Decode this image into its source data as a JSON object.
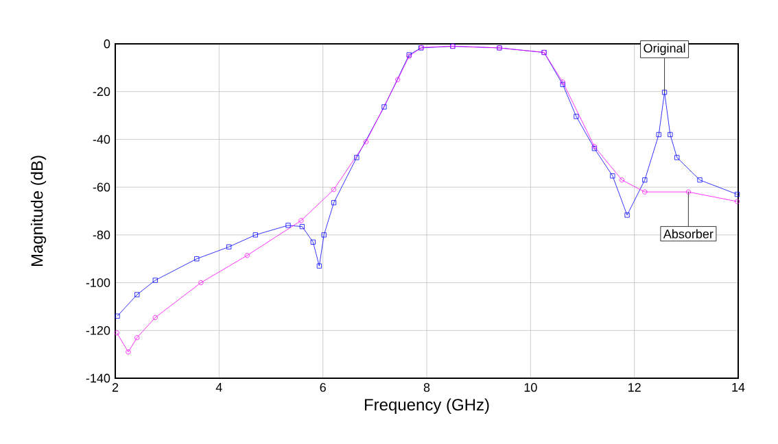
{
  "chart_data": {
    "type": "line",
    "xlabel": "Frequency (GHz)",
    "ylabel": "Magnitude (dB)",
    "xlim": [
      2,
      14
    ],
    "ylim": [
      -140,
      0
    ],
    "xticks": [
      2,
      4,
      6,
      8,
      10,
      12,
      14
    ],
    "yticks": [
      -140,
      -120,
      -100,
      -80,
      -60,
      -40,
      -20,
      0
    ],
    "grid": true,
    "legend": false,
    "line_style": "solid",
    "series": [
      {
        "name": "Original",
        "color": "#0000ff",
        "marker": "square",
        "x": [
          2.04,
          2.42,
          2.77,
          3.57,
          4.19,
          4.7,
          5.33,
          5.6,
          5.81,
          5.93,
          6.02,
          6.21,
          6.65,
          7.18,
          7.66,
          7.89,
          8.5,
          9.4,
          10.26,
          10.62,
          10.88,
          11.23,
          11.58,
          11.86,
          12.2,
          12.47,
          12.58,
          12.69,
          12.82,
          13.26,
          13.98
        ],
        "values": [
          -114,
          -105,
          -99,
          -90,
          -85,
          -80,
          -76,
          -76.5,
          -83,
          -93,
          -80,
          -66.5,
          -47.6,
          -26.4,
          -4.6,
          -1.7,
          -1,
          -1.7,
          -3.6,
          -17,
          -30.4,
          -43.8,
          -55.3,
          -71.7,
          -57,
          -38,
          -20.3,
          -38,
          -47.6,
          -57,
          -63
        ]
      },
      {
        "name": "Absorber",
        "color": "#ff00ff",
        "marker": "circle",
        "x": [
          2.03,
          2.25,
          2.42,
          2.77,
          3.65,
          4.54,
          5.58,
          6.21,
          6.83,
          7.44,
          7.66,
          7.9,
          8.5,
          9.4,
          10.26,
          10.62,
          11.23,
          11.76,
          12.2,
          13.04,
          13.98
        ],
        "values": [
          -121,
          -129,
          -123,
          -114.6,
          -100,
          -88.6,
          -74,
          -61,
          -41,
          -15,
          -5.2,
          -1.5,
          -1,
          -1.7,
          -3.6,
          -16,
          -43,
          -57,
          -62,
          -62,
          -66
        ]
      }
    ]
  }
}
